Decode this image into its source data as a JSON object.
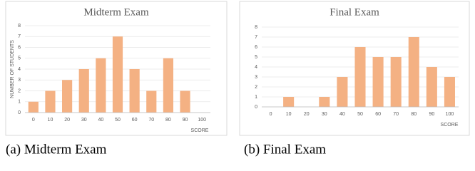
{
  "chart_data": [
    {
      "type": "bar",
      "title": "Midterm Exam",
      "ylabel": "NUMBER OF STUDENTS",
      "xlabel": "SCORE",
      "categories": [
        "0",
        "10",
        "20",
        "30",
        "40",
        "50",
        "60",
        "70",
        "80",
        "90",
        "100"
      ],
      "values": [
        1,
        2,
        3,
        4,
        5,
        7,
        4,
        2,
        5,
        2,
        0
      ],
      "color": "#f4b183",
      "ylim": [
        0,
        8
      ],
      "yticks": [
        0,
        1,
        2,
        3,
        4,
        5,
        6,
        7,
        8
      ],
      "grid": true,
      "caption": "(a) Midterm Exam"
    },
    {
      "type": "bar",
      "title": "Final Exam",
      "xlabel": "SCORE",
      "categories": [
        "0",
        "10",
        "20",
        "30",
        "40",
        "50",
        "60",
        "70",
        "80",
        "90",
        "100"
      ],
      "values": [
        0,
        1,
        0,
        1,
        3,
        6,
        5,
        5,
        7,
        4,
        3
      ],
      "color": "#f4b183",
      "ylim": [
        0,
        8
      ],
      "yticks": [
        0,
        1,
        2,
        3,
        4,
        5,
        6,
        7,
        8
      ],
      "grid": true,
      "caption": "(b) Final Exam"
    }
  ]
}
